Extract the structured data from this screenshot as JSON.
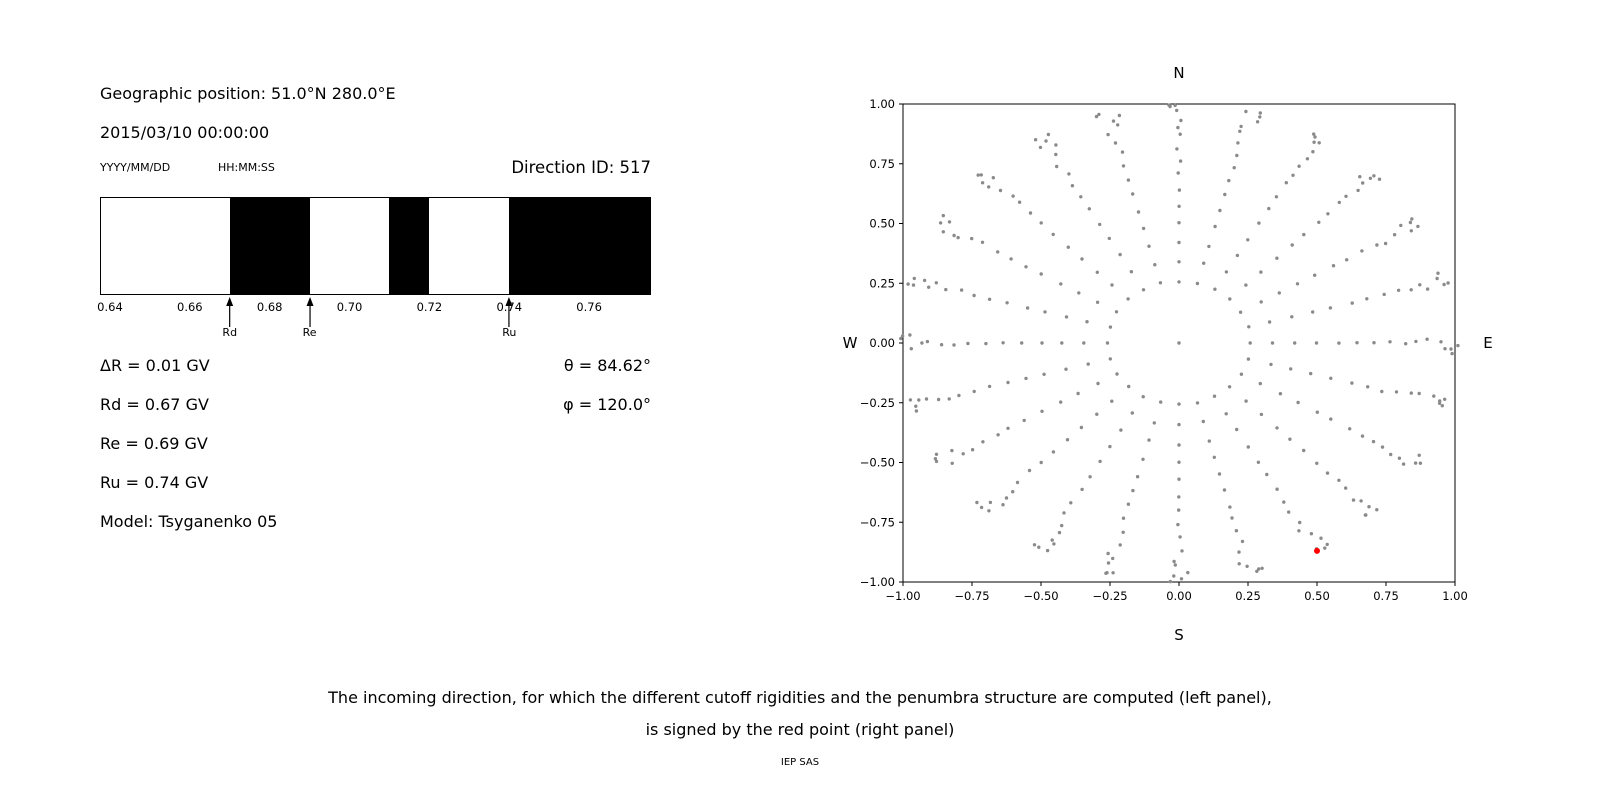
{
  "header": {
    "geo_position": "Geographic position: 51.0°N 280.0°E",
    "datetime": "2015/03/10 00:00:00",
    "date_format_label": "YYYY/MM/DD",
    "time_format_label": "HH:MM:SS",
    "direction_id": "Direction ID: 517"
  },
  "info": {
    "delta_r": "ΔR = 0.01 GV",
    "rd": "Rd = 0.67 GV",
    "re": "Re = 0.69 GV",
    "ru": "Ru = 0.74 GV",
    "model": "Model: Tsyganenko 05",
    "theta": "θ = 84.62°",
    "phi": "φ = 120.0°"
  },
  "caption": {
    "line1": "The incoming direction, for which the different cutoff rigidities and the penumbra structure are computed (left panel),",
    "line2": "is signed by the red point (right panel)"
  },
  "credit": "IEP SAS",
  "chart_data": [
    {
      "type": "bar",
      "subtype": "penumbra-band-strip",
      "xlim": [
        0.6375,
        0.7755
      ],
      "xtick_values": [
        0.64,
        0.66,
        0.68,
        0.7,
        0.72,
        0.74,
        0.76
      ],
      "xtick_labels": [
        "0.64",
        "0.66",
        "0.68",
        "0.70",
        "0.72",
        "0.74",
        "0.76"
      ],
      "forbidden_bands_gv": [
        [
          0.67,
          0.69
        ],
        [
          0.71,
          0.72
        ],
        [
          0.74,
          0.7755
        ]
      ],
      "allowed_color": "#ffffff",
      "forbidden_color": "#000000",
      "markers": [
        {
          "label": "Rd",
          "gv": 0.67
        },
        {
          "label": "Re",
          "gv": 0.69
        },
        {
          "label": "Ru",
          "gv": 0.74
        }
      ]
    },
    {
      "type": "scatter",
      "xlim": [
        -1.0,
        1.0
      ],
      "ylim": [
        -1.0,
        1.0
      ],
      "xtick_values": [
        -1.0,
        -0.75,
        -0.5,
        -0.25,
        0.0,
        0.25,
        0.5,
        0.75,
        1.0
      ],
      "xtick_labels": [
        "−1.00",
        "−0.75",
        "−0.50",
        "−0.25",
        "0.00",
        "0.25",
        "0.50",
        "0.75",
        "1.00"
      ],
      "ytick_values": [
        1.0,
        0.75,
        0.5,
        0.25,
        0.0,
        -0.25,
        -0.5,
        -0.75,
        -1.0
      ],
      "ytick_labels": [
        "1.00",
        "0.75",
        "0.50",
        "0.25",
        "0.00",
        "−0.25",
        "−0.50",
        "−0.75",
        "−1.00"
      ],
      "compass": {
        "top": "N",
        "bottom": "S",
        "left": "W",
        "right": "E"
      },
      "direction_grid": {
        "azimuth_start_deg": 0,
        "azimuth_step_deg": 15,
        "azimuth_count": 24,
        "zenith_angles_deg": [
          15,
          20,
          25,
          30,
          35,
          40,
          45,
          50,
          55,
          60,
          65,
          70,
          75,
          80,
          85,
          90
        ],
        "radius_rule": "sin(zenith)",
        "include_center_point": true,
        "dot_color": "#8a8a8a"
      },
      "red_point": {
        "x": 0.5,
        "y": -0.87,
        "color": "#ff0000"
      }
    }
  ]
}
